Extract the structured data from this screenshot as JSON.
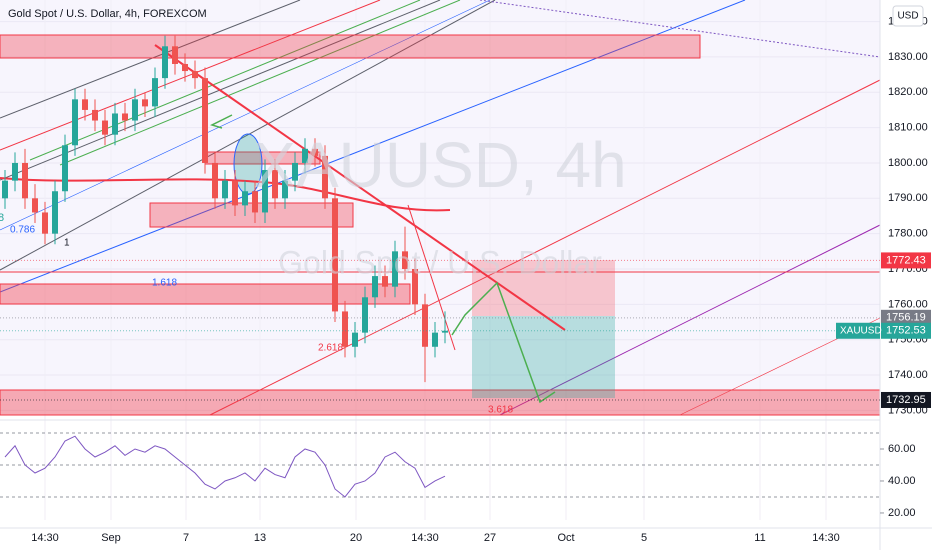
{
  "chart_data": {
    "type": "candlestick",
    "title": "Gold Spot / U.S. Dollar, 4h, FOREXCOM",
    "currency": "USD",
    "watermark": {
      "symbol": "XAUUSD, 4h",
      "description": "Gold Spot / U.S. Dollar"
    },
    "up_color": "#26a69a",
    "down_color": "#ef5350",
    "series": [
      {
        "name": "XAUUSD",
        "open": [
          1790,
          1795,
          1800,
          1790,
          1786,
          1780,
          1792,
          1805,
          1818,
          1815,
          1812,
          1808,
          1814,
          1812,
          1818,
          1816,
          1824,
          1833,
          1828,
          1826,
          1824,
          1800,
          1790,
          1795,
          1788,
          1792,
          1786,
          1798,
          1790,
          1795,
          1800,
          1804,
          1802,
          1790,
          1758,
          1748,
          1752,
          1762,
          1768,
          1765,
          1775,
          1770,
          1760,
          1748,
          1752
        ],
        "high": [
          1798,
          1803,
          1804,
          1794,
          1789,
          1795,
          1808,
          1821,
          1821,
          1818,
          1815,
          1817,
          1817,
          1821,
          1820,
          1827,
          1836,
          1836,
          1831,
          1829,
          1827,
          1803,
          1798,
          1798,
          1795,
          1795,
          1801,
          1801,
          1798,
          1803,
          1807,
          1807,
          1805,
          1793,
          1761,
          1755,
          1765,
          1771,
          1771,
          1778,
          1782,
          1773,
          1763,
          1755,
          1758
        ],
        "low": [
          1787,
          1792,
          1787,
          1783,
          1777,
          1777,
          1789,
          1802,
          1812,
          1809,
          1805,
          1805,
          1809,
          1809,
          1813,
          1813,
          1821,
          1825,
          1823,
          1821,
          1797,
          1787,
          1787,
          1785,
          1785,
          1783,
          1783,
          1787,
          1787,
          1792,
          1797,
          1799,
          1787,
          1755,
          1745,
          1745,
          1749,
          1759,
          1762,
          1762,
          1767,
          1757,
          1738,
          1745,
          1749
        ],
        "close": [
          1795,
          1800,
          1790,
          1786,
          1780,
          1792,
          1805,
          1818,
          1815,
          1812,
          1808,
          1814,
          1812,
          1818,
          1816,
          1824,
          1833,
          1828,
          1826,
          1824,
          1800,
          1790,
          1795,
          1788,
          1792,
          1786,
          1798,
          1790,
          1795,
          1800,
          1804,
          1802,
          1790,
          1758,
          1748,
          1752,
          1762,
          1768,
          1765,
          1775,
          1770,
          1760,
          1748,
          1752,
          1752.53
        ]
      }
    ],
    "ylim": [
      1728.7,
      1846.1
    ],
    "yticks": [
      {
        "value": 1730,
        "label": "1730.00"
      },
      {
        "value": 1740,
        "label": "1740.00"
      },
      {
        "value": 1750,
        "label": "1750.00"
      },
      {
        "value": 1760,
        "label": "1760.00"
      },
      {
        "value": 1770,
        "label": "1770.00"
      },
      {
        "value": 1780,
        "label": "1780.00"
      },
      {
        "value": 1790,
        "label": "1790.00"
      },
      {
        "value": 1800,
        "label": "1800.00"
      },
      {
        "value": 1810,
        "label": "1810.00"
      },
      {
        "value": 1820,
        "label": "1820.00"
      },
      {
        "value": 1830,
        "label": "1830.00"
      },
      {
        "value": 1840,
        "label": "1840.00"
      }
    ],
    "price_labels": [
      {
        "value": 1772.43,
        "color": "#f23645"
      },
      {
        "value": 1756.19,
        "color": "#787b86"
      },
      {
        "value": 1752.53,
        "color": "#26a69a"
      },
      {
        "value": 1732.95,
        "color": "#131722"
      }
    ],
    "xlim": [
      -0.5,
      87.5
    ],
    "xticks": [
      {
        "value": 4,
        "label": "14:30"
      },
      {
        "value": 10.6,
        "label": "Sep"
      },
      {
        "value": 18.1,
        "label": "7"
      },
      {
        "value": 25.5,
        "label": "13"
      },
      {
        "value": 35.1,
        "label": "20"
      },
      {
        "value": 42,
        "label": "14:30"
      },
      {
        "value": 48.5,
        "label": "27"
      },
      {
        "value": 56.1,
        "label": "Oct"
      },
      {
        "value": 63.9,
        "label": "5"
      },
      {
        "value": 75.5,
        "label": "11"
      },
      {
        "value": 82.1,
        "label": "14:30"
      }
    ],
    "annotations": [
      "8",
      "0.786",
      "1",
      "1.618",
      "2.618",
      "3.618"
    ],
    "rsi": {
      "color": "#7e57c2",
      "values": [
        55,
        62,
        50,
        45,
        48,
        55,
        65,
        68,
        60,
        55,
        58,
        62,
        56,
        60,
        58,
        62,
        60,
        55,
        50,
        45,
        38,
        35,
        40,
        42,
        45,
        40,
        48,
        44,
        42,
        55,
        60,
        58,
        50,
        35,
        30,
        38,
        40,
        45,
        55,
        58,
        52,
        48,
        36,
        40,
        43
      ],
      "ylim": [
        15.6,
        75
      ],
      "yticks": [
        {
          "value": 20,
          "label": "20.00"
        },
        {
          "value": 40,
          "label": "40.00"
        },
        {
          "value": 60,
          "label": "60.00"
        }
      ],
      "levels": [
        70,
        50,
        30
      ]
    }
  }
}
